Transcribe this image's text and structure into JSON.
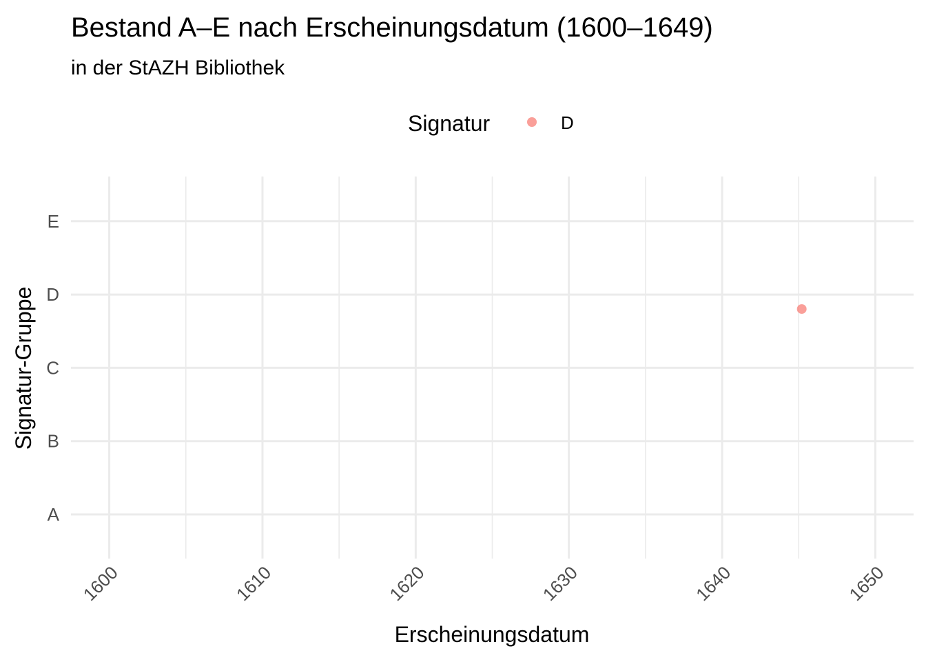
{
  "chart_data": {
    "type": "scatter",
    "title": "Bestand A–E nach Erscheinungsdatum (1600–1649)",
    "subtitle": "in der StAZH Bibliothek",
    "xlabel": "Erscheinungsdatum",
    "ylabel": "Signatur-Gruppe",
    "legend": {
      "title": "Signatur",
      "position": "top",
      "entries": [
        {
          "label": "D",
          "color": "#f8766d"
        }
      ]
    },
    "x_ticks": [
      "1600",
      "1610",
      "1620",
      "1630",
      "1640",
      "1650"
    ],
    "x_lim": [
      1597.5,
      1652.5
    ],
    "y_categories": [
      "A",
      "B",
      "C",
      "D",
      "E"
    ],
    "grid": true,
    "series": [
      {
        "name": "D",
        "color": "#f8766d",
        "points": [
          {
            "x": 1645.2,
            "y": "D"
          }
        ]
      }
    ]
  }
}
